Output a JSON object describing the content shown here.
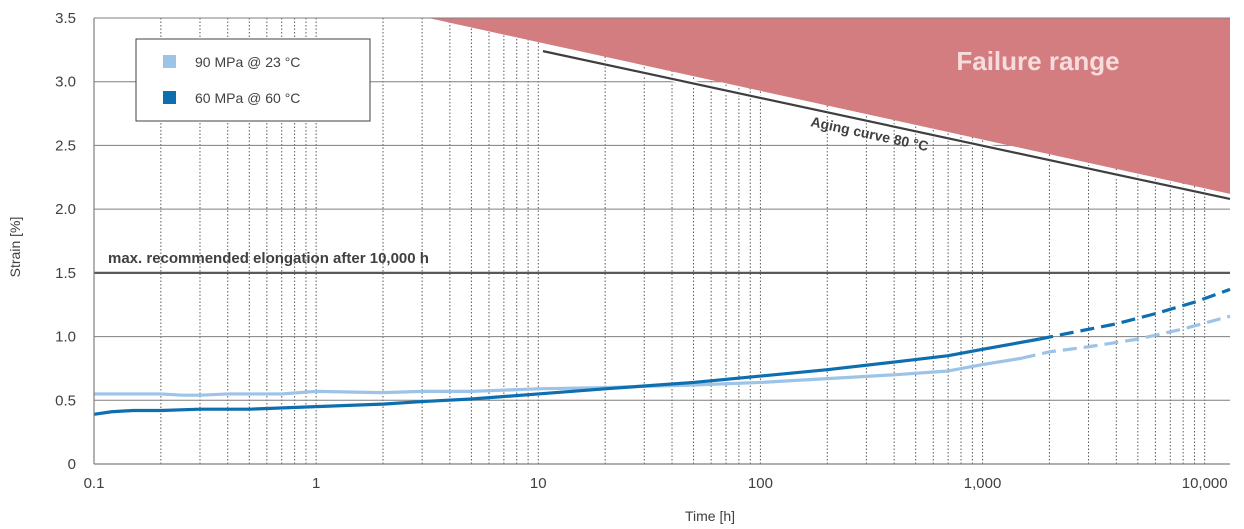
{
  "chart_data": {
    "type": "line",
    "xlabel": "Time [h]",
    "ylabel": "Strain [%]",
    "x_scale": "log",
    "xlim": [
      0.1,
      13000
    ],
    "ylim": [
      0,
      3.5
    ],
    "x_ticks": [
      0.1,
      1,
      10,
      100,
      1000,
      10000
    ],
    "x_tick_labels": [
      "0.1",
      "1",
      "10",
      "100",
      "1,000",
      "10,000"
    ],
    "y_ticks": [
      0,
      0.5,
      1.0,
      1.5,
      2.0,
      2.5,
      3.0,
      3.5
    ],
    "y_tick_labels": [
      "0",
      "0.5",
      "1.0",
      "1.5",
      "2.0",
      "2.5",
      "3.0",
      "3.5"
    ],
    "grid": {
      "major_y": true,
      "minor_x": true
    },
    "legend": {
      "position": "top-left",
      "entries": [
        {
          "name": "90 MPa @ 23 °C",
          "color": "#9dc3e6"
        },
        {
          "name": "60 MPa @ 60 °C",
          "color": "#0e6fb0"
        }
      ]
    },
    "series": [
      {
        "name": "90 MPa @ 23 °C",
        "color": "#9dc3e6",
        "x": [
          0.1,
          0.2,
          0.25,
          0.3,
          0.4,
          0.5,
          0.7,
          1,
          2,
          3,
          5,
          10,
          20,
          50,
          100,
          200,
          400,
          700,
          1000,
          1500
        ],
        "y": [
          0.55,
          0.55,
          0.54,
          0.54,
          0.55,
          0.55,
          0.55,
          0.57,
          0.56,
          0.57,
          0.57,
          0.59,
          0.6,
          0.62,
          0.64,
          0.67,
          0.7,
          0.73,
          0.78,
          0.83
        ]
      },
      {
        "name": "90 MPa @ 23 °C (extrapolated)",
        "color": "#9dc3e6",
        "dashed": true,
        "x": [
          1500,
          2000,
          3000,
          5000,
          8000,
          13000
        ],
        "y": [
          0.83,
          0.88,
          0.92,
          0.98,
          1.06,
          1.16
        ]
      },
      {
        "name": "60 MPa @ 60 °C",
        "color": "#0e6fb0",
        "x": [
          0.1,
          0.12,
          0.15,
          0.2,
          0.3,
          0.5,
          1,
          2,
          3,
          5,
          10,
          20,
          50,
          100,
          200,
          400,
          700,
          1000,
          1800
        ],
        "y": [
          0.39,
          0.41,
          0.42,
          0.42,
          0.43,
          0.43,
          0.45,
          0.47,
          0.49,
          0.51,
          0.55,
          0.59,
          0.64,
          0.69,
          0.74,
          0.8,
          0.85,
          0.9,
          0.98
        ]
      },
      {
        "name": "60 MPa @ 60 °C (extrapolated)",
        "color": "#0e6fb0",
        "dashed": true,
        "x": [
          1800,
          2500,
          4000,
          6000,
          9000,
          13000
        ],
        "y": [
          0.98,
          1.03,
          1.1,
          1.18,
          1.27,
          1.37
        ]
      },
      {
        "name": "Aging curve 80 °C",
        "color": "#3f3f3f",
        "x": [
          10.5,
          13000
        ],
        "y": [
          3.24,
          2.08
        ]
      }
    ],
    "reference_line": {
      "y": 1.5,
      "label": "max. recommended elongation after 10,000 h",
      "color": "#595959"
    },
    "failure_region": {
      "label": "Failure range",
      "color": "#d47d80",
      "boundary_x": [
        3.2,
        13000
      ],
      "boundary_y": [
        3.5,
        2.12
      ]
    },
    "annotations": [
      {
        "text": "Aging curve 80 °C"
      }
    ]
  }
}
